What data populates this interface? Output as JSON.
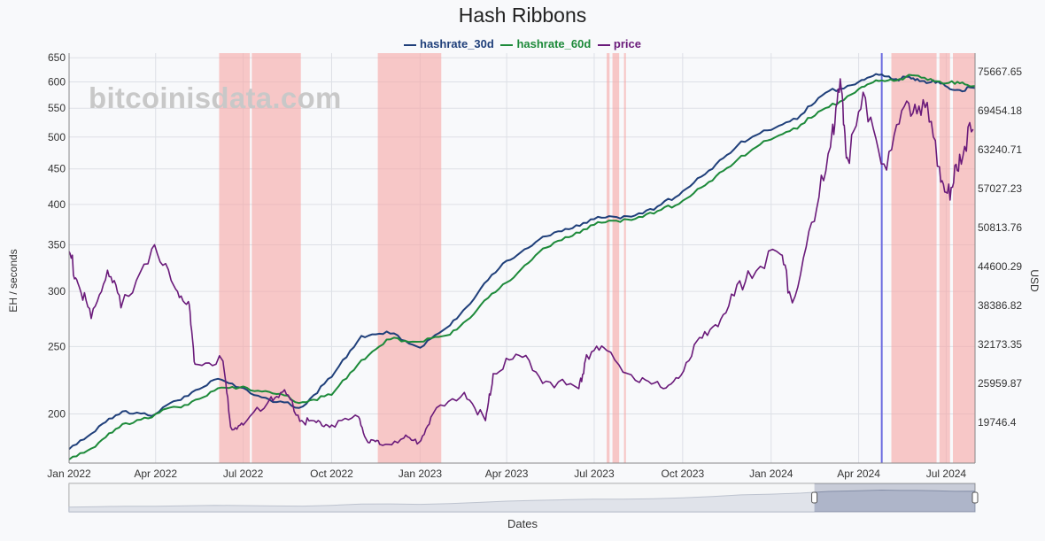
{
  "chart_data": {
    "type": "line",
    "title": "Hash Ribbons",
    "watermark": "bitcoinisdata.com",
    "xlabel": "Dates",
    "ylabel_left": "EH / seconds",
    "ylabel_right": "USD",
    "x_ticks": [
      "Jan 2022",
      "Apr 2022",
      "Jul 2022",
      "Oct 2022",
      "Jan 2023",
      "Apr 2023",
      "Jul 2023",
      "Oct 2023",
      "Jan 2024",
      "Apr 2024",
      "Jul 2024"
    ],
    "x_range": [
      "2022-01-01",
      "2024-07-31"
    ],
    "left_axis": {
      "scale": "log",
      "ticks": [
        200,
        250,
        300,
        350,
        400,
        450,
        500,
        550,
        600,
        650
      ],
      "range": [
        170,
        660
      ]
    },
    "right_axis": {
      "ticks": [
        "19746.4",
        "25959.87",
        "32173.35",
        "38386.82",
        "44600.29",
        "50813.76",
        "57027.23",
        "63240.71",
        "69454.18",
        "75667.65"
      ]
    },
    "grid": true,
    "legend_position": "top",
    "colors": {
      "hashrate_30d": "#1f3f7a",
      "hashrate_60d": "#1d8a3a",
      "price": "#6a1a7a",
      "capitulation_band": "#f6a5a5",
      "buy_signal": "#6b6be0"
    },
    "series": [
      {
        "name": "hashrate_30d",
        "axis": "left",
        "points": [
          [
            "2022-01-01",
            178
          ],
          [
            "2022-02-01",
            192
          ],
          [
            "2022-03-01",
            202
          ],
          [
            "2022-04-01",
            200
          ],
          [
            "2022-05-01",
            212
          ],
          [
            "2022-06-01",
            224
          ],
          [
            "2022-07-01",
            218
          ],
          [
            "2022-08-01",
            208
          ],
          [
            "2022-09-01",
            205
          ],
          [
            "2022-10-01",
            226
          ],
          [
            "2022-11-01",
            259
          ],
          [
            "2022-12-01",
            261
          ],
          [
            "2023-01-01",
            249
          ],
          [
            "2023-02-01",
            268
          ],
          [
            "2023-03-01",
            297
          ],
          [
            "2023-04-01",
            332
          ],
          [
            "2023-05-01",
            353
          ],
          [
            "2023-06-01",
            369
          ],
          [
            "2023-07-01",
            381
          ],
          [
            "2023-08-01",
            385
          ],
          [
            "2023-09-01",
            393
          ],
          [
            "2023-10-01",
            418
          ],
          [
            "2023-11-01",
            450
          ],
          [
            "2023-12-01",
            493
          ],
          [
            "2024-01-01",
            512
          ],
          [
            "2024-02-01",
            538
          ],
          [
            "2024-03-01",
            582
          ],
          [
            "2024-04-01",
            600
          ],
          [
            "2024-04-25",
            615
          ],
          [
            "2024-05-15",
            606
          ],
          [
            "2024-06-01",
            606
          ],
          [
            "2024-06-20",
            598
          ],
          [
            "2024-07-10",
            584
          ],
          [
            "2024-07-31",
            588
          ]
        ]
      },
      {
        "name": "hashrate_60d",
        "axis": "left",
        "points": [
          [
            "2022-01-01",
            172
          ],
          [
            "2022-02-01",
            182
          ],
          [
            "2022-03-01",
            194
          ],
          [
            "2022-04-01",
            200
          ],
          [
            "2022-05-01",
            206
          ],
          [
            "2022-06-01",
            216
          ],
          [
            "2022-07-01",
            219
          ],
          [
            "2022-08-01",
            214
          ],
          [
            "2022-09-01",
            208
          ],
          [
            "2022-10-01",
            213
          ],
          [
            "2022-11-01",
            239
          ],
          [
            "2022-12-01",
            256
          ],
          [
            "2023-01-01",
            254
          ],
          [
            "2023-02-01",
            260
          ],
          [
            "2023-03-01",
            282
          ],
          [
            "2023-04-01",
            309
          ],
          [
            "2023-05-01",
            338
          ],
          [
            "2023-06-01",
            359
          ],
          [
            "2023-07-01",
            374
          ],
          [
            "2023-08-01",
            381
          ],
          [
            "2023-09-01",
            388
          ],
          [
            "2023-10-01",
            405
          ],
          [
            "2023-11-01",
            433
          ],
          [
            "2023-12-01",
            470
          ],
          [
            "2024-01-01",
            496
          ],
          [
            "2024-02-01",
            521
          ],
          [
            "2024-03-01",
            552
          ],
          [
            "2024-04-01",
            586
          ],
          [
            "2024-04-25",
            603
          ],
          [
            "2024-05-20",
            610
          ],
          [
            "2024-06-15",
            606
          ],
          [
            "2024-07-10",
            596
          ],
          [
            "2024-07-31",
            592
          ]
        ]
      },
      {
        "name": "price",
        "axis": "right",
        "points": [
          [
            "2022-01-01",
            47000
          ],
          [
            "2022-01-10",
            42000
          ],
          [
            "2022-01-24",
            36300
          ],
          [
            "2022-02-10",
            44000
          ],
          [
            "2022-02-24",
            38000
          ],
          [
            "2022-03-28",
            47400
          ],
          [
            "2022-04-20",
            41500
          ],
          [
            "2022-05-05",
            39000
          ],
          [
            "2022-05-12",
            29000
          ],
          [
            "2022-06-10",
            29500
          ],
          [
            "2022-06-18",
            19000
          ],
          [
            "2022-07-01",
            19300
          ],
          [
            "2022-07-30",
            23800
          ],
          [
            "2022-08-15",
            24200
          ],
          [
            "2022-08-31",
            20000
          ],
          [
            "2022-09-15",
            19700
          ],
          [
            "2022-10-01",
            19300
          ],
          [
            "2022-10-29",
            20600
          ],
          [
            "2022-11-08",
            16500
          ],
          [
            "2022-11-20",
            16200
          ],
          [
            "2022-12-15",
            17200
          ],
          [
            "2022-12-31",
            16550
          ],
          [
            "2023-01-14",
            21000
          ],
          [
            "2023-02-16",
            24500
          ],
          [
            "2023-03-10",
            20000
          ],
          [
            "2023-03-18",
            27500
          ],
          [
            "2023-04-14",
            30400
          ],
          [
            "2023-05-12",
            26300
          ],
          [
            "2023-06-15",
            25100
          ],
          [
            "2023-06-23",
            30500
          ],
          [
            "2023-07-14",
            31200
          ],
          [
            "2023-08-17",
            26100
          ],
          [
            "2023-09-11",
            25100
          ],
          [
            "2023-10-02",
            27900
          ],
          [
            "2023-10-24",
            34200
          ],
          [
            "2023-11-15",
            37200
          ],
          [
            "2023-12-08",
            43900
          ],
          [
            "2024-01-11",
            46500
          ],
          [
            "2024-01-23",
            38800
          ],
          [
            "2024-02-15",
            51800
          ],
          [
            "2024-03-05",
            67300
          ],
          [
            "2024-03-14",
            72900
          ],
          [
            "2024-03-20",
            62000
          ],
          [
            "2024-04-08",
            71500
          ],
          [
            "2024-04-30",
            60000
          ],
          [
            "2024-05-21",
            71000
          ],
          [
            "2024-06-07",
            71200
          ],
          [
            "2024-06-24",
            60500
          ],
          [
            "2024-07-05",
            55200
          ],
          [
            "2024-07-15",
            62500
          ],
          [
            "2024-07-29",
            66500
          ]
        ]
      }
    ],
    "capitulation_bands": [
      [
        "2022-06-06",
        "2022-07-08"
      ],
      [
        "2022-07-10",
        "2022-08-30"
      ],
      [
        "2022-11-18",
        "2023-01-23"
      ],
      [
        "2023-07-14",
        "2023-07-17"
      ],
      [
        "2023-07-20",
        "2023-07-27"
      ],
      [
        "2023-08-01",
        "2023-08-03"
      ],
      [
        "2024-05-05",
        "2024-06-21"
      ],
      [
        "2024-06-24",
        "2024-07-05"
      ],
      [
        "2024-07-08",
        "2024-07-31"
      ]
    ],
    "buy_signal_date": "2024-04-25",
    "navigator": {
      "selected_range": [
        "2024-04-01",
        "2024-07-31"
      ]
    }
  }
}
